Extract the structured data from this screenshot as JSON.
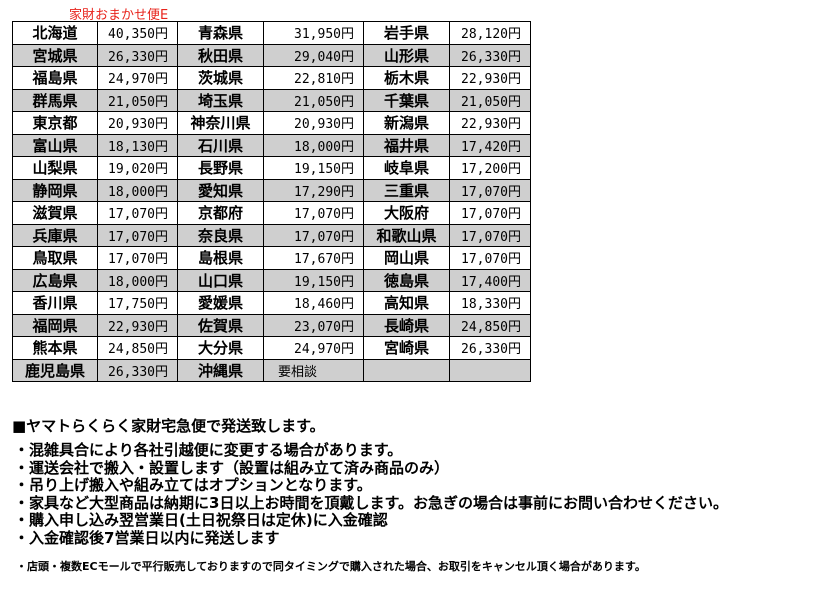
{
  "title": "家財おまかせ便E",
  "rows": [
    [
      "北海道",
      "40,350円",
      "青森県",
      "31,950円",
      "岩手県",
      "28,120円"
    ],
    [
      "宮城県",
      "26,330円",
      "秋田県",
      "29,040円",
      "山形県",
      "26,330円"
    ],
    [
      "福島県",
      "24,970円",
      "茨城県",
      "22,810円",
      "栃木県",
      "22,930円"
    ],
    [
      "群馬県",
      "21,050円",
      "埼玉県",
      "21,050円",
      "千葉県",
      "21,050円"
    ],
    [
      "東京都",
      "20,930円",
      "神奈川県",
      "20,930円",
      "新潟県",
      "22,930円"
    ],
    [
      "富山県",
      "18,130円",
      "石川県",
      "18,000円",
      "福井県",
      "17,420円"
    ],
    [
      "山梨県",
      "19,020円",
      "長野県",
      "19,150円",
      "岐阜県",
      "17,200円"
    ],
    [
      "静岡県",
      "18,000円",
      "愛知県",
      "17,290円",
      "三重県",
      "17,070円"
    ],
    [
      "滋賀県",
      "17,070円",
      "京都府",
      "17,070円",
      "大阪府",
      "17,070円"
    ],
    [
      "兵庫県",
      "17,070円",
      "奈良県",
      "17,070円",
      "和歌山県",
      "17,070円"
    ],
    [
      "鳥取県",
      "17,070円",
      "島根県",
      "17,670円",
      "岡山県",
      "17,070円"
    ],
    [
      "広島県",
      "18,000円",
      "山口県",
      "19,150円",
      "徳島県",
      "17,400円"
    ],
    [
      "香川県",
      "17,750円",
      "愛媛県",
      "18,460円",
      "高知県",
      "18,330円"
    ],
    [
      "福岡県",
      "22,930円",
      "佐賀県",
      "23,070円",
      "長崎県",
      "24,850円"
    ],
    [
      "熊本県",
      "24,850円",
      "大分県",
      "24,970円",
      "宮崎県",
      "26,330円"
    ],
    [
      "鹿児島県",
      "26,330円",
      "沖縄県",
      "要相談",
      "",
      ""
    ]
  ],
  "heading": "■ヤマトらくらく家財宅急便で発送致します。",
  "notes": [
    "・混雑具合により各社引越便に変更する場合があります。",
    "・運送会社で搬入・設置します（設置は組み立て済み商品のみ）",
    "・吊り上げ搬入や組み立てはオプションとなります。",
    "・家具など大型商品は納期に3日以上お時間を頂戴します。お急ぎの場合は事前にお問い合わせください。",
    "・購入申し込み翌営業日(土日祝祭日は定休)に入金確認",
    "・入金確認後7営業日以内に発送します"
  ],
  "footnote": "・店頭・複数ECモールで平行販売しておりますので同タイミングで購入された場合、お取引をキャンセル頂く場合があります。",
  "colors": {
    "title": "#e8231b",
    "row_alt": "#cfcfcf"
  }
}
